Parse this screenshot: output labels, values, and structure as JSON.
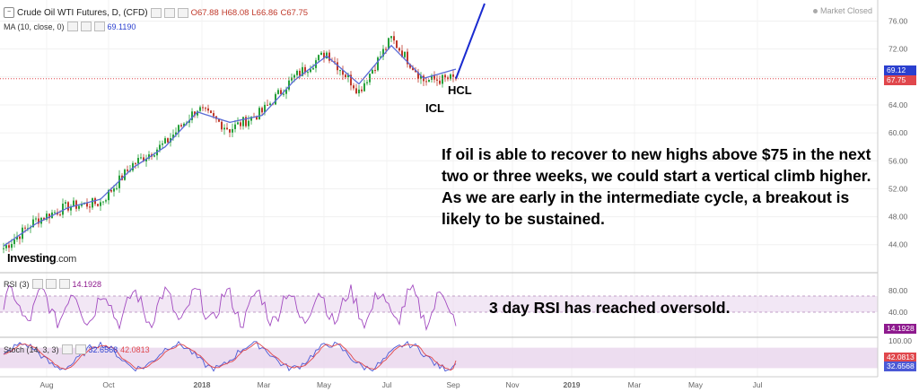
{
  "header": {
    "symbol": "Crude Oil WTI Futures, D, (CFD)",
    "open": "O67.88",
    "high": "H68.08",
    "low": "L66.86",
    "close": "C67.75",
    "ma_label": "MA (10, close, 0)",
    "ma_value": "69.1190",
    "status": "Market Closed"
  },
  "logo": {
    "brand": "Investing",
    "suffix": ".com"
  },
  "annotations": {
    "main": "If oil is able to recover to new highs above $75 in the next two or three weeks, we could start a vertical climb higher. As we are early in the intermediate cycle, a breakout is likely to be sustained.",
    "rsi": "3 day RSI has reached oversold.",
    "hcl": "HCL",
    "icl": "ICL"
  },
  "rsi": {
    "label": "RSI (3)",
    "value": "14.1928"
  },
  "stoch": {
    "label": "Stoch (14, 3, 3)",
    "k": "32.6568",
    "d": "42.0813"
  },
  "colors": {
    "up": "#26a03a",
    "down": "#c0392b",
    "ma": "#5a6bd6",
    "projection": "#1a2bd0",
    "close_line": "#e0474c",
    "ma_box": "#2a3fcf",
    "close_box": "#e0474c",
    "rsi_line": "#a24ac0",
    "rsi_box": "#8e1a8e",
    "stoch_k": "#4b59d6",
    "stoch_d": "#e0474c",
    "band": "#e8d4ec"
  },
  "chart_data": [
    {
      "type": "candlestick",
      "title": "Crude Oil WTI Futures, D, (CFD)",
      "x_ticks": [
        "Aug",
        "Oct",
        "2018",
        "Mar",
        "May",
        "Jul",
        "Sep",
        "Nov",
        "2019",
        "Mar",
        "May",
        "Jul"
      ],
      "y_ticks": [
        "76.00",
        "72.00",
        "68.00",
        "64.00",
        "60.00",
        "56.00",
        "52.00",
        "48.00",
        "44.00"
      ],
      "ylim": [
        40.5,
        78.5
      ],
      "price_markers": {
        "ma": "69.12",
        "close": "67.75"
      },
      "x": [
        "2017-07",
        "2017-08",
        "2017-09",
        "2017-10",
        "2017-11",
        "2017-12",
        "2018-01",
        "2018-02",
        "2018-03",
        "2018-04",
        "2018-05",
        "2018-06",
        "2018-07",
        "2018-08",
        "2018-09"
      ],
      "close_path": [
        43.5,
        47.5,
        49.5,
        50.0,
        55.5,
        58.5,
        63.5,
        60.5,
        63.0,
        68.0,
        71.5,
        66.0,
        73.5,
        67.5,
        67.75
      ],
      "series": [
        {
          "name": "MA (10, close, 0)",
          "values": [
            43.8,
            47.0,
            49.3,
            50.5,
            55.0,
            58.0,
            63.0,
            61.5,
            62.5,
            67.5,
            71.0,
            67.0,
            72.5,
            67.8,
            69.12
          ]
        }
      ],
      "projection": {
        "from": [
          "2018-09",
          67.75
        ],
        "to": [
          "2018-10",
          78.5
        ]
      },
      "annotations": [
        {
          "text": "HCL",
          "x": "2018-09"
        },
        {
          "text": "ICL",
          "x": "2018-08"
        }
      ]
    },
    {
      "type": "line",
      "title": "RSI (3)",
      "y_ticks": [
        "80.00",
        "40.00"
      ],
      "band": [
        40,
        70
      ],
      "last_value": 14.1928
    },
    {
      "type": "line",
      "title": "Stoch (14, 3, 3)",
      "y_ticks": [
        "100.00",
        "50.00"
      ],
      "band": [
        20,
        80
      ],
      "series": [
        {
          "name": "%K",
          "last": 32.6568
        },
        {
          "name": "%D",
          "last": 42.0813
        }
      ]
    }
  ]
}
